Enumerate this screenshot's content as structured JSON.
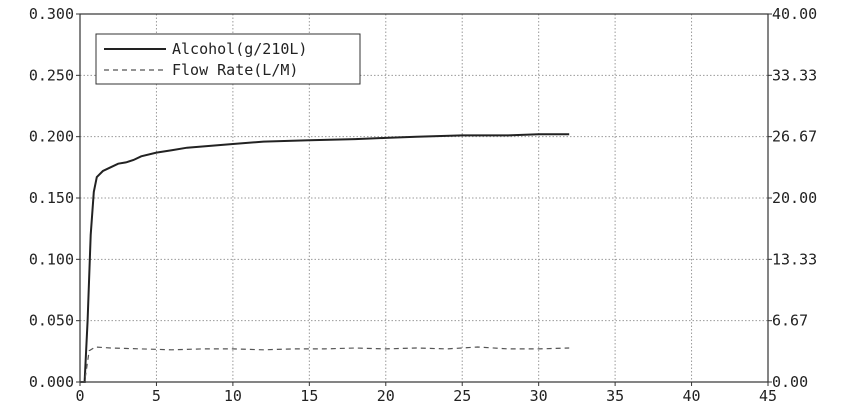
{
  "chart_data": {
    "type": "line",
    "title": "",
    "xlabel": "",
    "ylabel": "",
    "xlim": [
      0,
      45
    ],
    "ylim": [
      0,
      0.3
    ],
    "y2lim": [
      0,
      40
    ],
    "grid": true,
    "legend_position": "top-left",
    "x_ticks": [
      "0",
      "5",
      "10",
      "15",
      "20",
      "25",
      "30",
      "35",
      "40",
      "45"
    ],
    "y_ticks": [
      "0.000",
      "0.050",
      "0.100",
      "0.150",
      "0.200",
      "0.250",
      "0.300"
    ],
    "y2_ticks": [
      "0.00",
      "6.67",
      "13.33",
      "20.00",
      "26.67",
      "33.33",
      "40.00"
    ],
    "series": [
      {
        "name": "Alcohol(g/210L)",
        "axis": "left",
        "style": "solid",
        "color": "#222222",
        "x": [
          0,
          0.3,
          0.5,
          0.7,
          0.9,
          1.1,
          1.5,
          2,
          2.5,
          3,
          3.5,
          4,
          5,
          6,
          7,
          8,
          10,
          12,
          15,
          18,
          20,
          22,
          25,
          28,
          30,
          32
        ],
        "y": [
          0.0,
          0.0,
          0.05,
          0.12,
          0.155,
          0.167,
          0.172,
          0.175,
          0.178,
          0.179,
          0.181,
          0.184,
          0.187,
          0.189,
          0.191,
          0.192,
          0.194,
          0.196,
          0.197,
          0.198,
          0.199,
          0.2,
          0.201,
          0.201,
          0.202,
          0.202
        ]
      },
      {
        "name": "Flow Rate(L/M)",
        "axis": "right",
        "style": "dashed",
        "color": "#555555",
        "x": [
          0,
          0.3,
          0.6,
          1,
          2,
          4,
          6,
          8,
          10,
          12,
          14,
          16,
          18,
          20,
          22,
          24,
          26,
          28,
          30,
          32
        ],
        "y": [
          0.0,
          0.0,
          3.4,
          3.8,
          3.7,
          3.6,
          3.5,
          3.6,
          3.6,
          3.5,
          3.6,
          3.6,
          3.7,
          3.6,
          3.7,
          3.6,
          3.8,
          3.6,
          3.6,
          3.7
        ]
      }
    ]
  }
}
